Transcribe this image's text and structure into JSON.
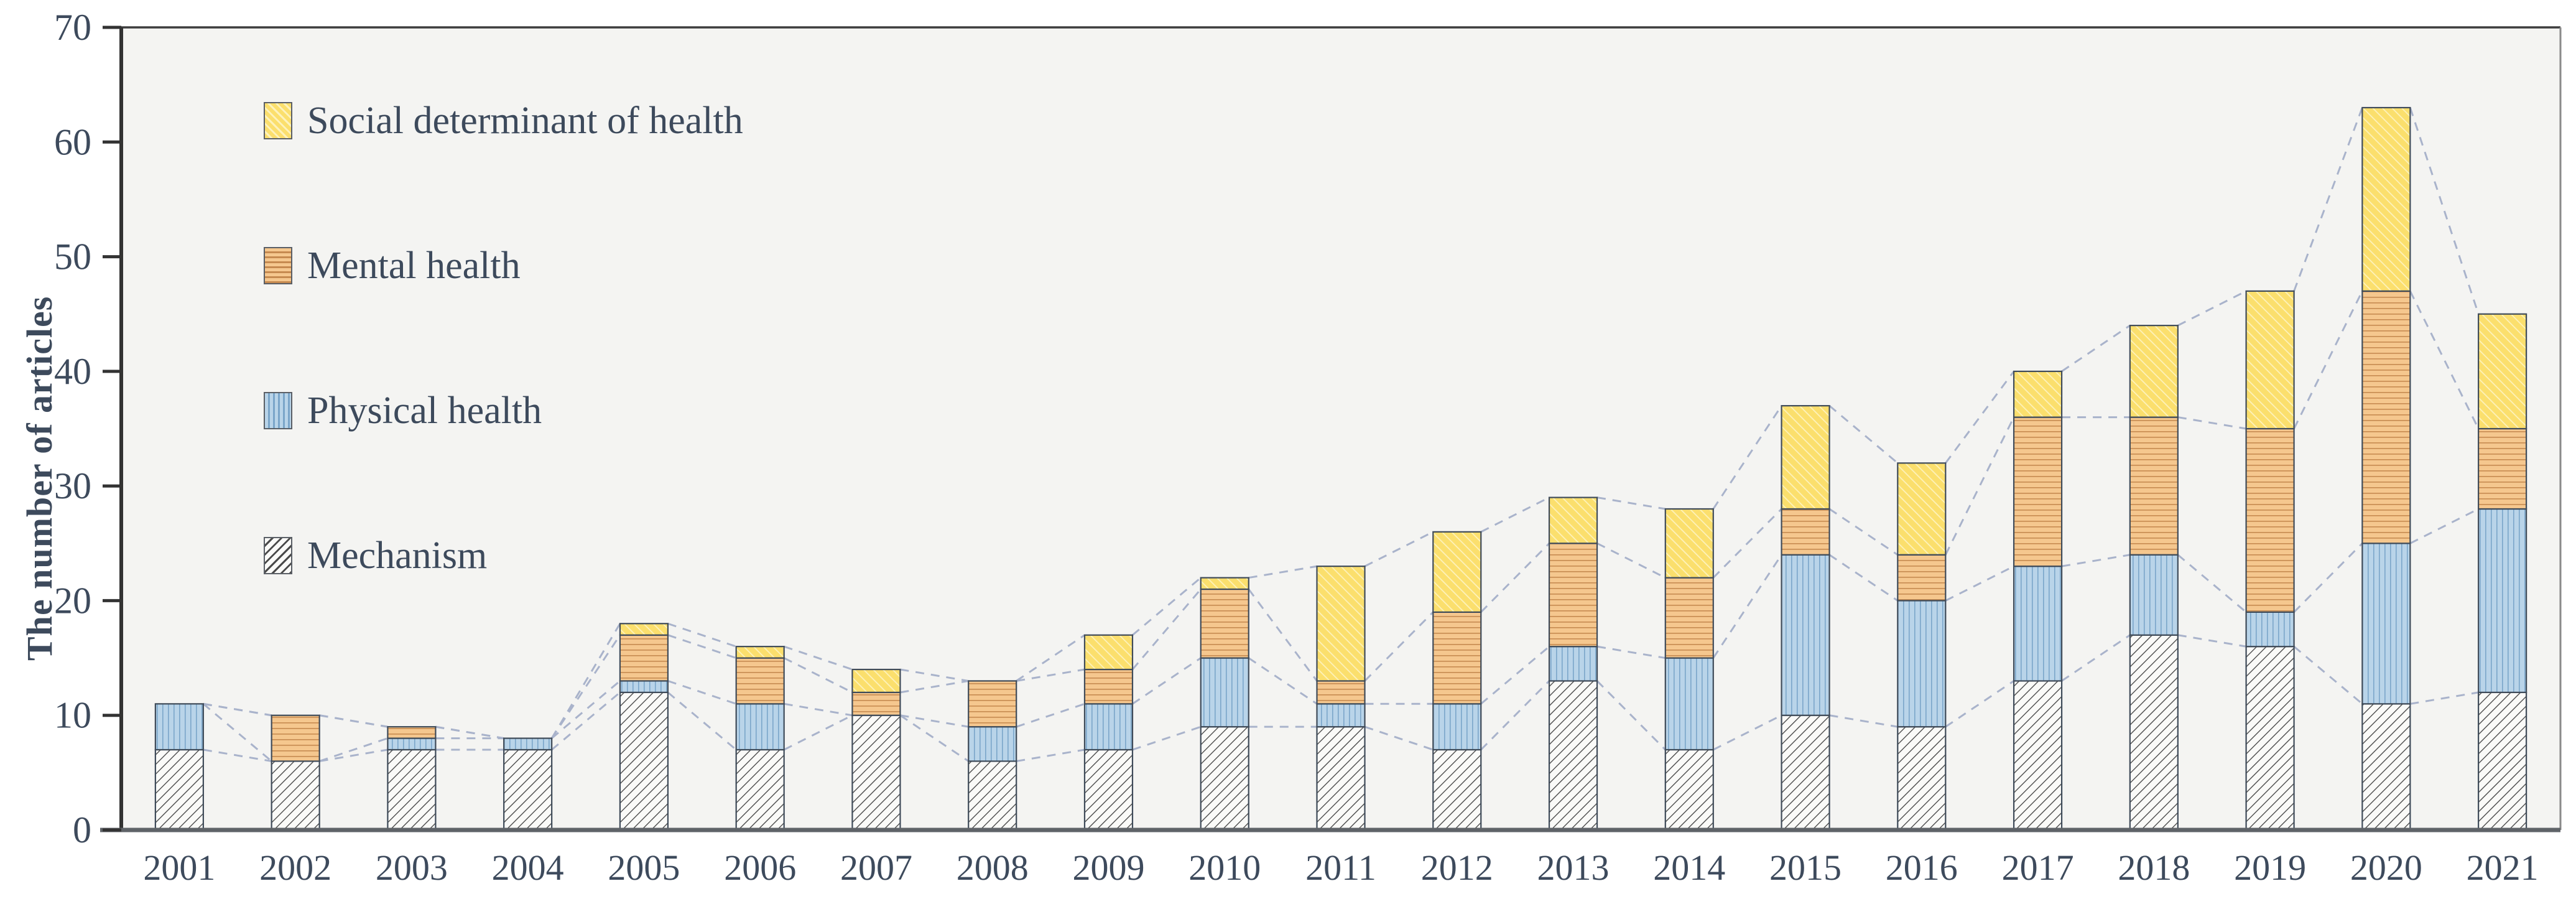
{
  "figure": {
    "kind": "stacked-bar-chart",
    "page_bg": "#ffffff"
  },
  "colors": {
    "text": "#3d4a5c",
    "plot_bg": "#f4f4f2",
    "page_bg": "#ffffff",
    "axis_left": "#333333",
    "axis_bottom": "#5f6368",
    "frame_top": "#3d3d3d",
    "frame_right": "#8a8a8a",
    "connector": "#a9b3cb",
    "bar_border": "#3f4b59",
    "mechanism_fill": "#fafaf8",
    "mechanism_line": "#4a4a4a",
    "physical_fill": "#b9d4e9",
    "physical_line": "#7aa5c9",
    "mental_fill": "#f5c78e",
    "mental_line": "#c68a50",
    "social_fill": "#fbdf6d",
    "social_line": "#fdf2bb"
  },
  "legend": {
    "items": [
      {
        "label": "Social determinant of health",
        "key": "social"
      },
      {
        "label": "Mental health",
        "key": "mental"
      },
      {
        "label": "Physical health",
        "key": "physical"
      },
      {
        "label": "Mechanism",
        "key": "mechanism"
      }
    ]
  },
  "chart_data": {
    "type": "bar",
    "stacked": true,
    "title": "",
    "xlabel": "",
    "ylabel": "The number of articles",
    "ylim": [
      0,
      70
    ],
    "yticks": [
      0,
      10,
      20,
      30,
      40,
      50,
      60,
      70
    ],
    "grid": false,
    "legend_position": "inside-top-left",
    "connector_style": "dashed lines linking segment boundaries of adjacent bars",
    "categories": [
      "2001",
      "2002",
      "2003",
      "2004",
      "2005",
      "2006",
      "2007",
      "2008",
      "2009",
      "2010",
      "2011",
      "2012",
      "2013",
      "2014",
      "2015",
      "2016",
      "2017",
      "2018",
      "2019",
      "2020",
      "2021"
    ],
    "series": [
      {
        "name": "Mechanism",
        "pattern": "diagonal-forward",
        "values": [
          7,
          6,
          7,
          7,
          12,
          7,
          10,
          6,
          7,
          9,
          9,
          7,
          13,
          7,
          10,
          9,
          13,
          17,
          16,
          11,
          12
        ]
      },
      {
        "name": "Physical health",
        "pattern": "vertical",
        "values": [
          4,
          0,
          1,
          1,
          1,
          4,
          0,
          3,
          4,
          6,
          2,
          4,
          3,
          8,
          14,
          11,
          10,
          7,
          3,
          14,
          16
        ]
      },
      {
        "name": "Mental health",
        "pattern": "horizontal",
        "values": [
          0,
          4,
          1,
          0,
          4,
          4,
          2,
          4,
          3,
          6,
          2,
          8,
          9,
          7,
          4,
          4,
          13,
          12,
          16,
          22,
          7
        ]
      },
      {
        "name": "Social determinant of health",
        "pattern": "diagonal-back",
        "values": [
          0,
          0,
          0,
          0,
          1,
          1,
          2,
          0,
          3,
          1,
          10,
          7,
          4,
          6,
          9,
          8,
          4,
          8,
          12,
          16,
          10
        ]
      }
    ],
    "totals": [
      11,
      10,
      9,
      8,
      18,
      16,
      14,
      13,
      17,
      22,
      23,
      26,
      29,
      28,
      37,
      32,
      40,
      44,
      47,
      63,
      45
    ]
  }
}
